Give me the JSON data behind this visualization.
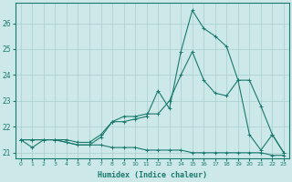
{
  "xlabel": "Humidex (Indice chaleur)",
  "bg_color": "#cce8e8",
  "line_color": "#1a7a6e",
  "grid_color": "#aacece",
  "xlim": [
    -0.5,
    23.5
  ],
  "ylim": [
    20.8,
    26.8
  ],
  "xticks": [
    0,
    1,
    2,
    3,
    4,
    5,
    6,
    7,
    8,
    9,
    10,
    11,
    12,
    13,
    14,
    15,
    16,
    17,
    18,
    19,
    20,
    21,
    22,
    23
  ],
  "yticks": [
    21,
    22,
    23,
    24,
    25,
    26
  ],
  "line1_x": [
    0,
    1,
    2,
    3,
    4,
    5,
    6,
    7,
    8,
    9,
    10,
    11,
    12,
    13,
    14,
    15,
    16,
    17,
    18,
    19,
    20,
    21,
    22,
    23
  ],
  "line1_y": [
    21.5,
    21.2,
    21.5,
    21.5,
    21.4,
    21.3,
    21.3,
    21.6,
    22.2,
    22.2,
    22.3,
    22.4,
    23.4,
    22.7,
    24.9,
    26.5,
    25.8,
    25.5,
    25.1,
    23.8,
    21.7,
    21.1,
    21.7,
    21.0
  ],
  "line2_x": [
    0,
    1,
    2,
    3,
    4,
    5,
    6,
    7,
    8,
    9,
    10,
    11,
    12,
    13,
    14,
    15,
    16,
    17,
    18,
    19,
    20,
    21,
    22,
    23
  ],
  "line2_y": [
    21.5,
    21.5,
    21.5,
    21.5,
    21.5,
    21.4,
    21.4,
    21.7,
    22.2,
    22.4,
    22.4,
    22.5,
    22.5,
    23.0,
    24.0,
    24.9,
    23.8,
    23.3,
    23.2,
    23.8,
    23.8,
    22.8,
    21.7,
    21.0
  ],
  "line3_x": [
    0,
    1,
    2,
    3,
    4,
    5,
    6,
    7,
    8,
    9,
    10,
    11,
    12,
    13,
    14,
    15,
    16,
    17,
    18,
    19,
    20,
    21,
    22,
    23
  ],
  "line3_y": [
    21.5,
    21.5,
    21.5,
    21.5,
    21.4,
    21.3,
    21.3,
    21.3,
    21.2,
    21.2,
    21.2,
    21.1,
    21.1,
    21.1,
    21.1,
    21.0,
    21.0,
    21.0,
    21.0,
    21.0,
    21.0,
    21.0,
    20.9,
    20.9
  ],
  "marker": "+"
}
